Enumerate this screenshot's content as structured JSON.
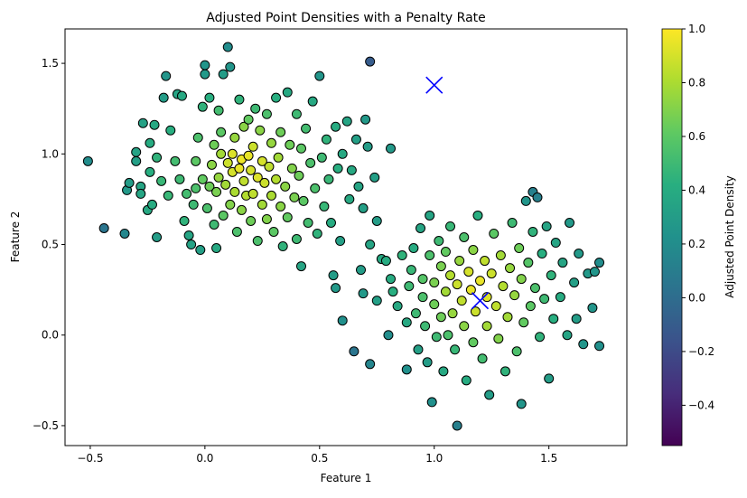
{
  "chart_data": {
    "type": "scatter",
    "title": "Adjusted Point Densities with a Penalty Rate",
    "xlabel": "Feature 1",
    "ylabel": "Feature 2",
    "xlim": [
      -0.61,
      1.84
    ],
    "ylim": [
      -0.61,
      1.69
    ],
    "xticks": [
      -0.5,
      0.0,
      0.5,
      1.0,
      1.5
    ],
    "xtick_labels": [
      "−0.5",
      "0.0",
      "0.5",
      "1.0",
      "1.5"
    ],
    "yticks": [
      -0.5,
      0.0,
      0.5,
      1.0,
      1.5
    ],
    "ytick_labels": [
      "−0.5",
      "0.0",
      "0.5",
      "1.0",
      "1.5"
    ],
    "grid": false,
    "colormap": "viridis",
    "colorbar": {
      "label": "Adjusted Point Density",
      "min": -0.55,
      "max": 1.0,
      "ticks": [
        -0.4,
        -0.2,
        0.0,
        0.2,
        0.4,
        0.6,
        0.8,
        1.0
      ],
      "tick_labels": [
        "−0.4",
        "−0.2",
        "0.0",
        "0.2",
        "0.4",
        "0.6",
        "0.8",
        "1.0"
      ]
    },
    "cluster_centers": [
      {
        "x": 1.0,
        "y": 1.38,
        "marker": "x",
        "color": "#0000ff"
      },
      {
        "x": 1.2,
        "y": 0.19,
        "marker": "x",
        "color": "#0000ff"
      }
    ],
    "points": [
      [
        -0.51,
        0.96,
        0.2
      ],
      [
        -0.44,
        0.59,
        0.05
      ],
      [
        -0.35,
        0.56,
        0.16
      ],
      [
        -0.34,
        0.8,
        0.28
      ],
      [
        -0.33,
        0.84,
        0.3
      ],
      [
        -0.3,
        0.96,
        0.32
      ],
      [
        -0.3,
        1.01,
        0.34
      ],
      [
        -0.28,
        0.82,
        0.35
      ],
      [
        -0.28,
        0.78,
        0.36
      ],
      [
        -0.27,
        1.17,
        0.33
      ],
      [
        -0.25,
        0.69,
        0.38
      ],
      [
        -0.24,
        0.9,
        0.42
      ],
      [
        -0.24,
        1.06,
        0.4
      ],
      [
        -0.23,
        0.72,
        0.4
      ],
      [
        -0.22,
        1.16,
        0.38
      ],
      [
        -0.21,
        0.54,
        0.3
      ],
      [
        -0.21,
        0.98,
        0.45
      ],
      [
        -0.19,
        0.85,
        0.48
      ],
      [
        -0.18,
        1.31,
        0.3
      ],
      [
        -0.17,
        1.43,
        0.25
      ],
      [
        -0.16,
        0.77,
        0.48
      ],
      [
        -0.15,
        1.13,
        0.42
      ],
      [
        -0.13,
        0.96,
        0.52
      ],
      [
        -0.12,
        1.33,
        0.35
      ],
      [
        -0.11,
        0.86,
        0.5
      ],
      [
        -0.1,
        1.32,
        0.38
      ],
      [
        -0.09,
        0.63,
        0.45
      ],
      [
        -0.08,
        0.78,
        0.52
      ],
      [
        -0.07,
        0.55,
        0.35
      ],
      [
        -0.06,
        0.5,
        0.34
      ],
      [
        -0.05,
        0.72,
        0.5
      ],
      [
        -0.04,
        0.81,
        0.55
      ],
      [
        -0.04,
        0.96,
        0.6
      ],
      [
        -0.03,
        1.09,
        0.55
      ],
      [
        -0.02,
        0.47,
        0.32
      ],
      [
        -0.01,
        0.86,
        0.62
      ],
      [
        -0.01,
        1.26,
        0.45
      ],
      [
        0.0,
        1.44,
        0.28
      ],
      [
        0.0,
        1.49,
        0.25
      ],
      [
        0.01,
        0.7,
        0.55
      ],
      [
        0.02,
        0.82,
        0.65
      ],
      [
        0.02,
        1.31,
        0.42
      ],
      [
        0.03,
        0.94,
        0.72
      ],
      [
        0.04,
        0.61,
        0.5
      ],
      [
        0.04,
        1.05,
        0.65
      ],
      [
        0.05,
        0.48,
        0.38
      ],
      [
        0.05,
        0.79,
        0.68
      ],
      [
        0.06,
        0.87,
        0.75
      ],
      [
        0.06,
        1.24,
        0.52
      ],
      [
        0.07,
        1.0,
        0.78
      ],
      [
        0.07,
        1.12,
        0.6
      ],
      [
        0.08,
        0.66,
        0.6
      ],
      [
        0.08,
        1.44,
        0.3
      ],
      [
        0.09,
        0.83,
        0.78
      ],
      [
        0.1,
        1.59,
        0.2
      ],
      [
        0.1,
        0.95,
        0.88
      ],
      [
        0.11,
        0.72,
        0.7
      ],
      [
        0.11,
        1.48,
        0.25
      ],
      [
        0.12,
        0.9,
        0.9
      ],
      [
        0.12,
        1.0,
        0.92
      ],
      [
        0.13,
        0.79,
        0.8
      ],
      [
        0.13,
        1.09,
        0.75
      ],
      [
        0.14,
        0.57,
        0.55
      ],
      [
        0.15,
        0.92,
        0.95
      ],
      [
        0.15,
        1.3,
        0.45
      ],
      [
        0.16,
        0.69,
        0.72
      ],
      [
        0.16,
        0.97,
        0.96
      ],
      [
        0.17,
        1.15,
        0.72
      ],
      [
        0.17,
        0.85,
        0.85
      ],
      [
        0.18,
        0.77,
        0.82
      ],
      [
        0.19,
        0.99,
        0.95
      ],
      [
        0.19,
        1.19,
        0.62
      ],
      [
        0.2,
        0.63,
        0.65
      ],
      [
        0.2,
        0.91,
        0.9
      ],
      [
        0.21,
        1.04,
        0.88
      ],
      [
        0.21,
        0.78,
        0.85
      ],
      [
        0.22,
        1.25,
        0.5
      ],
      [
        0.23,
        0.87,
        0.92
      ],
      [
        0.23,
        0.52,
        0.55
      ],
      [
        0.24,
        1.13,
        0.72
      ],
      [
        0.25,
        0.72,
        0.78
      ],
      [
        0.25,
        0.96,
        0.9
      ],
      [
        0.26,
        0.84,
        0.88
      ],
      [
        0.27,
        0.64,
        0.7
      ],
      [
        0.27,
        1.22,
        0.55
      ],
      [
        0.28,
        0.93,
        0.85
      ],
      [
        0.29,
        0.77,
        0.8
      ],
      [
        0.29,
        1.06,
        0.75
      ],
      [
        0.3,
        0.57,
        0.6
      ],
      [
        0.31,
        0.86,
        0.82
      ],
      [
        0.31,
        1.31,
        0.42
      ],
      [
        0.32,
        0.98,
        0.78
      ],
      [
        0.33,
        0.71,
        0.72
      ],
      [
        0.33,
        1.12,
        0.65
      ],
      [
        0.34,
        0.49,
        0.45
      ],
      [
        0.35,
        0.82,
        0.72
      ],
      [
        0.36,
        1.34,
        0.38
      ],
      [
        0.36,
        0.65,
        0.62
      ],
      [
        0.37,
        1.05,
        0.65
      ],
      [
        0.38,
        0.92,
        0.7
      ],
      [
        0.39,
        0.76,
        0.68
      ],
      [
        0.4,
        0.53,
        0.5
      ],
      [
        0.4,
        1.22,
        0.5
      ],
      [
        0.41,
        0.88,
        0.65
      ],
      [
        0.42,
        0.38,
        0.35
      ],
      [
        0.42,
        1.03,
        0.6
      ],
      [
        0.43,
        0.74,
        0.6
      ],
      [
        0.44,
        1.14,
        0.52
      ],
      [
        0.45,
        0.62,
        0.52
      ],
      [
        0.46,
        0.95,
        0.55
      ],
      [
        0.47,
        1.29,
        0.38
      ],
      [
        0.48,
        0.81,
        0.55
      ],
      [
        0.49,
        0.56,
        0.45
      ],
      [
        0.5,
        1.43,
        0.25
      ],
      [
        0.51,
        0.98,
        0.5
      ],
      [
        0.52,
        0.71,
        0.48
      ],
      [
        0.53,
        1.08,
        0.45
      ],
      [
        0.54,
        0.86,
        0.48
      ],
      [
        0.55,
        0.62,
        0.4
      ],
      [
        0.57,
        1.15,
        0.4
      ],
      [
        0.58,
        0.92,
        0.42
      ],
      [
        0.59,
        0.52,
        0.32
      ],
      [
        0.6,
        1.0,
        0.38
      ],
      [
        0.62,
        1.18,
        0.35
      ],
      [
        0.63,
        0.75,
        0.38
      ],
      [
        0.64,
        0.91,
        0.38
      ],
      [
        0.66,
        1.08,
        0.32
      ],
      [
        0.67,
        0.82,
        0.35
      ],
      [
        0.69,
        0.7,
        0.32
      ],
      [
        0.7,
        1.19,
        0.28
      ],
      [
        0.71,
        1.04,
        0.3
      ],
      [
        0.72,
        1.51,
        -0.1
      ],
      [
        0.74,
        0.87,
        0.32
      ],
      [
        0.75,
        0.63,
        0.3
      ],
      [
        0.81,
        1.03,
        0.28
      ],
      [
        0.56,
        0.33,
        0.3
      ],
      [
        0.57,
        0.26,
        0.28
      ],
      [
        0.6,
        0.08,
        0.22
      ],
      [
        0.65,
        -0.09,
        0.05
      ],
      [
        0.68,
        0.36,
        0.3
      ],
      [
        0.69,
        0.23,
        0.28
      ],
      [
        0.72,
        0.5,
        0.35
      ],
      [
        0.72,
        -0.16,
        0.15
      ],
      [
        0.75,
        0.19,
        0.32
      ],
      [
        0.77,
        0.42,
        0.38
      ],
      [
        0.79,
        0.41,
        0.4
      ],
      [
        0.8,
        0.0,
        0.2
      ],
      [
        0.81,
        0.31,
        0.4
      ],
      [
        0.82,
        0.24,
        0.42
      ],
      [
        0.84,
        0.16,
        0.38
      ],
      [
        0.86,
        0.44,
        0.45
      ],
      [
        0.88,
        0.07,
        0.38
      ],
      [
        0.88,
        -0.19,
        0.22
      ],
      [
        0.89,
        0.27,
        0.5
      ],
      [
        0.9,
        0.36,
        0.48
      ],
      [
        0.91,
        0.48,
        0.4
      ],
      [
        0.92,
        0.12,
        0.5
      ],
      [
        0.93,
        -0.08,
        0.32
      ],
      [
        0.94,
        0.59,
        0.35
      ],
      [
        0.95,
        0.31,
        0.58
      ],
      [
        0.95,
        0.21,
        0.55
      ],
      [
        0.96,
        0.05,
        0.5
      ],
      [
        0.97,
        -0.15,
        0.3
      ],
      [
        0.98,
        0.44,
        0.55
      ],
      [
        0.98,
        0.66,
        0.35
      ],
      [
        0.99,
        -0.37,
        0.22
      ],
      [
        1.0,
        0.17,
        0.65
      ],
      [
        1.0,
        0.29,
        0.68
      ],
      [
        1.01,
        -0.01,
        0.5
      ],
      [
        1.02,
        0.52,
        0.5
      ],
      [
        1.03,
        0.38,
        0.68
      ],
      [
        1.03,
        0.1,
        0.65
      ],
      [
        1.04,
        -0.2,
        0.38
      ],
      [
        1.05,
        0.24,
        0.78
      ],
      [
        1.05,
        0.46,
        0.62
      ],
      [
        1.06,
        0.0,
        0.55
      ],
      [
        1.07,
        0.33,
        0.82
      ],
      [
        1.07,
        0.6,
        0.48
      ],
      [
        1.08,
        0.12,
        0.75
      ],
      [
        1.09,
        -0.08,
        0.48
      ],
      [
        1.1,
        0.28,
        0.88
      ],
      [
        1.1,
        -0.5,
        0.12
      ],
      [
        1.11,
        0.41,
        0.75
      ],
      [
        1.12,
        0.19,
        0.85
      ],
      [
        1.13,
        0.54,
        0.55
      ],
      [
        1.13,
        0.05,
        0.72
      ],
      [
        1.14,
        -0.25,
        0.4
      ],
      [
        1.15,
        0.35,
        0.9
      ],
      [
        1.16,
        0.25,
        0.95
      ],
      [
        1.17,
        0.47,
        0.72
      ],
      [
        1.17,
        -0.04,
        0.62
      ],
      [
        1.18,
        0.13,
        0.88
      ],
      [
        1.19,
        0.66,
        0.42
      ],
      [
        1.2,
        0.3,
        0.95
      ],
      [
        1.21,
        -0.13,
        0.52
      ],
      [
        1.22,
        0.41,
        0.85
      ],
      [
        1.23,
        0.21,
        0.92
      ],
      [
        1.23,
        0.05,
        0.78
      ],
      [
        1.24,
        -0.33,
        0.3
      ],
      [
        1.25,
        0.34,
        0.88
      ],
      [
        1.26,
        0.56,
        0.6
      ],
      [
        1.27,
        0.16,
        0.85
      ],
      [
        1.28,
        -0.02,
        0.7
      ],
      [
        1.29,
        0.44,
        0.78
      ],
      [
        1.3,
        0.27,
        0.82
      ],
      [
        1.31,
        -0.2,
        0.45
      ],
      [
        1.32,
        0.1,
        0.78
      ],
      [
        1.33,
        0.37,
        0.75
      ],
      [
        1.34,
        0.62,
        0.5
      ],
      [
        1.35,
        0.22,
        0.75
      ],
      [
        1.36,
        -0.09,
        0.55
      ],
      [
        1.37,
        0.48,
        0.65
      ],
      [
        1.38,
        0.31,
        0.7
      ],
      [
        1.38,
        -0.38,
        0.25
      ],
      [
        1.39,
        0.07,
        0.62
      ],
      [
        1.4,
        0.74,
        0.25
      ],
      [
        1.41,
        0.4,
        0.58
      ],
      [
        1.42,
        0.16,
        0.6
      ],
      [
        1.43,
        0.57,
        0.45
      ],
      [
        1.43,
        0.79,
        0.12
      ],
      [
        1.44,
        0.26,
        0.55
      ],
      [
        1.45,
        0.76,
        0.12
      ],
      [
        1.46,
        -0.01,
        0.45
      ],
      [
        1.47,
        0.45,
        0.42
      ],
      [
        1.48,
        0.2,
        0.5
      ],
      [
        1.49,
        0.6,
        0.35
      ],
      [
        1.5,
        -0.24,
        0.3
      ],
      [
        1.51,
        0.33,
        0.45
      ],
      [
        1.52,
        0.09,
        0.42
      ],
      [
        1.53,
        0.51,
        0.35
      ],
      [
        1.55,
        0.21,
        0.4
      ],
      [
        1.56,
        0.4,
        0.35
      ],
      [
        1.58,
        0.0,
        0.35
      ],
      [
        1.59,
        0.62,
        0.28
      ],
      [
        1.61,
        0.29,
        0.32
      ],
      [
        1.62,
        0.09,
        0.3
      ],
      [
        1.63,
        0.45,
        0.28
      ],
      [
        1.65,
        -0.05,
        0.25
      ],
      [
        1.67,
        0.34,
        0.28
      ],
      [
        1.69,
        0.15,
        0.25
      ],
      [
        1.7,
        0.35,
        0.25
      ],
      [
        1.72,
        -0.06,
        0.22
      ],
      [
        1.72,
        0.4,
        0.2
      ]
    ]
  }
}
